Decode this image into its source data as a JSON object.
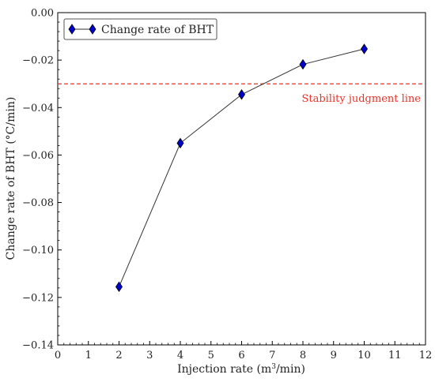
{
  "chart_data": {
    "type": "line",
    "title": "",
    "xlabel_pre": "Injection rate (m",
    "xlabel_sup": "3",
    "xlabel_post": "/min)",
    "ylabel": "Change rate of BHT (°C/min)",
    "xlim": [
      0,
      12
    ],
    "ylim": [
      -0.14,
      0.0
    ],
    "x_ticks": [
      0,
      1,
      2,
      3,
      4,
      5,
      6,
      7,
      8,
      9,
      10,
      11,
      12
    ],
    "y_ticks": [
      0.0,
      -0.02,
      -0.04,
      -0.06,
      -0.08,
      -0.1,
      -0.12,
      -0.14
    ],
    "y_tick_labels": [
      "0.00",
      "−0.02",
      "−0.04",
      "−0.06",
      "−0.08",
      "−0.10",
      "−0.12",
      "−0.14"
    ],
    "grid": false,
    "legend_position": "top-left",
    "series": [
      {
        "name": "Change rate of BHT",
        "marker": "diamond",
        "marker_color": "#0000cc",
        "line_color": "#333333",
        "x": [
          2,
          4,
          6,
          8,
          10
        ],
        "y": [
          -0.1155,
          -0.055,
          -0.0345,
          -0.0218,
          -0.0153
        ]
      }
    ],
    "reference_line": {
      "y": -0.03,
      "style": "dashed",
      "color": "#e8332a",
      "label": "Stability judgment line"
    }
  }
}
